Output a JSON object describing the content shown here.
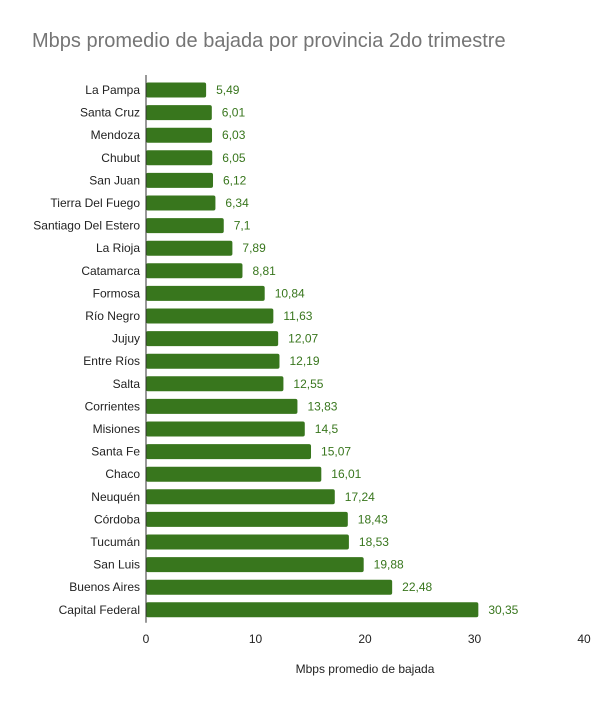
{
  "chart_data": {
    "type": "bar",
    "orientation": "horizontal",
    "title": "Mbps promedio de bajada por provincia 2do trimestre",
    "xlabel": "Mbps promedio de bajada",
    "ylabel": "",
    "xlim": [
      0,
      40
    ],
    "xticks": [
      0,
      10,
      20,
      30,
      40
    ],
    "tick_labels": [
      "0",
      "10",
      "20",
      "30",
      "40"
    ],
    "grid": false,
    "legend": "none",
    "bar_color": "#38761d",
    "label_color": "#38761d",
    "categories": [
      "La Pampa",
      "Santa Cruz",
      "Mendoza",
      "Chubut",
      "San Juan",
      "Tierra Del Fuego",
      "Santiago Del Estero",
      "La Rioja",
      "Catamarca",
      "Formosa",
      "Río Negro",
      "Jujuy",
      "Entre Ríos",
      "Salta",
      "Corrientes",
      "Misiones",
      "Santa Fe",
      "Chaco",
      "Neuquén",
      "Córdoba",
      "Tucumán",
      "San Luis",
      "Buenos Aires",
      "Capital Federal"
    ],
    "values": [
      5.49,
      6.01,
      6.03,
      6.05,
      6.12,
      6.34,
      7.1,
      7.89,
      8.81,
      10.84,
      11.63,
      12.07,
      12.19,
      12.55,
      13.83,
      14.5,
      15.07,
      16.01,
      17.24,
      18.43,
      18.53,
      19.88,
      22.48,
      30.35
    ],
    "data_labels": [
      "5,49",
      "6,01",
      "6,03",
      "6,05",
      "6,12",
      "6,34",
      "7,1",
      "7,89",
      "8,81",
      "10,84",
      "11,63",
      "12,07",
      "12,19",
      "12,55",
      "13,83",
      "14,5",
      "15,07",
      "16,01",
      "17,24",
      "18,43",
      "18,53",
      "19,88",
      "22,48",
      "30,35"
    ]
  }
}
